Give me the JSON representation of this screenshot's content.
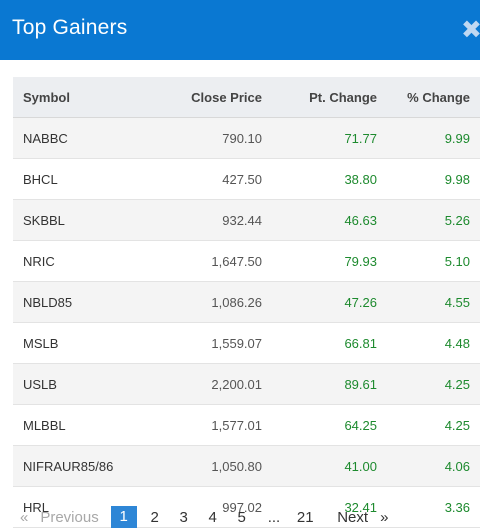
{
  "header": {
    "title": "Top Gainers",
    "close_label": "✖"
  },
  "table": {
    "columns": [
      "Symbol",
      "Close Price",
      "Pt. Change",
      "% Change"
    ],
    "rows": [
      [
        "NABBC",
        "790.10",
        "71.77",
        "9.99"
      ],
      [
        "BHCL",
        "427.50",
        "38.80",
        "9.98"
      ],
      [
        "SKBBL",
        "932.44",
        "46.63",
        "5.26"
      ],
      [
        "NRIC",
        "1,647.50",
        "79.93",
        "5.10"
      ],
      [
        "NBLD85",
        "1,086.26",
        "47.26",
        "4.55"
      ],
      [
        "MSLB",
        "1,559.07",
        "66.81",
        "4.48"
      ],
      [
        "USLB",
        "2,200.01",
        "89.61",
        "4.25"
      ],
      [
        "MLBBL",
        "1,577.01",
        "64.25",
        "4.25"
      ],
      [
        "NIFRAUR85/86",
        "1,050.80",
        "41.00",
        "4.06"
      ],
      [
        "HRL",
        "997.02",
        "32.41",
        "3.36"
      ]
    ]
  },
  "pagination": {
    "prev_arrow": "«",
    "prev_label": "Previous",
    "pages": [
      "1",
      "2",
      "3",
      "4",
      "5"
    ],
    "ellipsis": "...",
    "last_page": "21",
    "next_label": "Next",
    "next_arrow": "»",
    "active_page": "1"
  },
  "colors": {
    "header_bg": "#0a78d2",
    "positive": "#1d8a2e",
    "active_page": "#2e86d6"
  }
}
